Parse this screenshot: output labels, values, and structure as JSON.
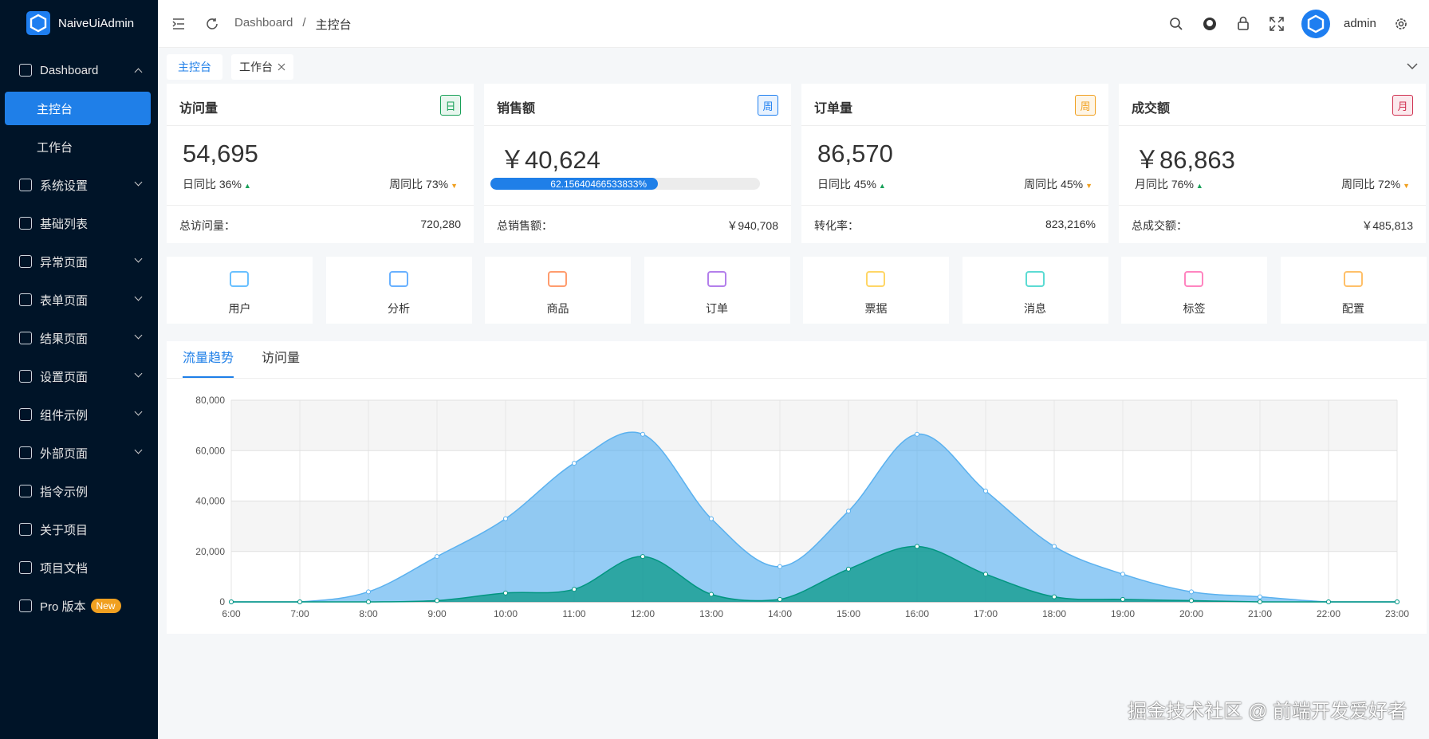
{
  "sidebar": {
    "logo": "NaiveUiAdmin",
    "menu": [
      {
        "label": "Dashboard",
        "children": [
          "主控台",
          "工作台"
        ]
      },
      {
        "label": "系统设置"
      },
      {
        "label": "基础列表"
      },
      {
        "label": "异常页面"
      },
      {
        "label": "表单页面"
      },
      {
        "label": "结果页面"
      },
      {
        "label": "设置页面"
      },
      {
        "label": "组件示例"
      },
      {
        "label": "外部页面"
      },
      {
        "label": "指令示例"
      },
      {
        "label": "关于项目"
      },
      {
        "label": "项目文档"
      },
      {
        "label": "Pro 版本",
        "badge": "New"
      }
    ]
  },
  "header": {
    "breadcrumb": [
      "Dashboard",
      "主控台"
    ],
    "user": "admin"
  },
  "tabs": [
    "主控台",
    "工作台"
  ],
  "cards": [
    {
      "title": "访问量",
      "tag": "日",
      "value": "54,695",
      "left": "日同比 36%",
      "right": "周同比 73%",
      "footer_label": "总访问量：",
      "footer_value": "720,280"
    },
    {
      "title": "销售额",
      "tag": "周",
      "value": "￥40,624",
      "progress": {
        "value": 62.15640466533833,
        "label": "62.15640466533833%"
      },
      "footer_label": "总销售额：",
      "footer_value": "￥940,708"
    },
    {
      "title": "订单量",
      "tag": "周",
      "value": "86,570",
      "left": "日同比 45%",
      "right": "周同比 45%",
      "footer_label": "转化率：",
      "footer_value": "823,216%"
    },
    {
      "title": "成交额",
      "tag": "月",
      "value": "￥86,863",
      "left": "月同比 76%",
      "right": "周同比 72%",
      "footer_label": "总成交额：",
      "footer_value": "￥485,813"
    }
  ],
  "quick_nav": [
    "用户",
    "分析",
    "商品",
    "订单",
    "票据",
    "消息",
    "标签",
    "配置"
  ],
  "chart_tabs": [
    "流量趋势",
    "访问量"
  ],
  "chart_data": {
    "type": "area",
    "x": [
      "6:00",
      "7:00",
      "8:00",
      "9:00",
      "10:00",
      "11:00",
      "12:00",
      "13:00",
      "14:00",
      "15:00",
      "16:00",
      "17:00",
      "18:00",
      "19:00",
      "20:00",
      "21:00",
      "22:00",
      "23:00"
    ],
    "series": [
      {
        "color": "#5ab1ef",
        "values": [
          0,
          0,
          4000,
          18000,
          33000,
          55000,
          66500,
          33000,
          14000,
          36000,
          66500,
          44000,
          22000,
          11000,
          4000,
          2000,
          0,
          0
        ]
      },
      {
        "color": "#019680",
        "values": [
          0,
          0,
          0,
          500,
          3500,
          5000,
          18000,
          3000,
          1000,
          13000,
          22000,
          11000,
          2000,
          1000,
          500,
          0,
          0,
          0
        ]
      }
    ],
    "ylim": [
      0,
      80000
    ],
    "yticks": [
      0,
      {
        "value": 20000,
        "label": "20,000"
      },
      {
        "value": 40000,
        "label": "40,000"
      },
      {
        "value": 60000,
        "label": "60,000"
      },
      {
        "value": 80000,
        "label": "80,000"
      }
    ],
    "grid": true
  },
  "watermark": "掘金技术社区 @ 前端开发爱好者"
}
